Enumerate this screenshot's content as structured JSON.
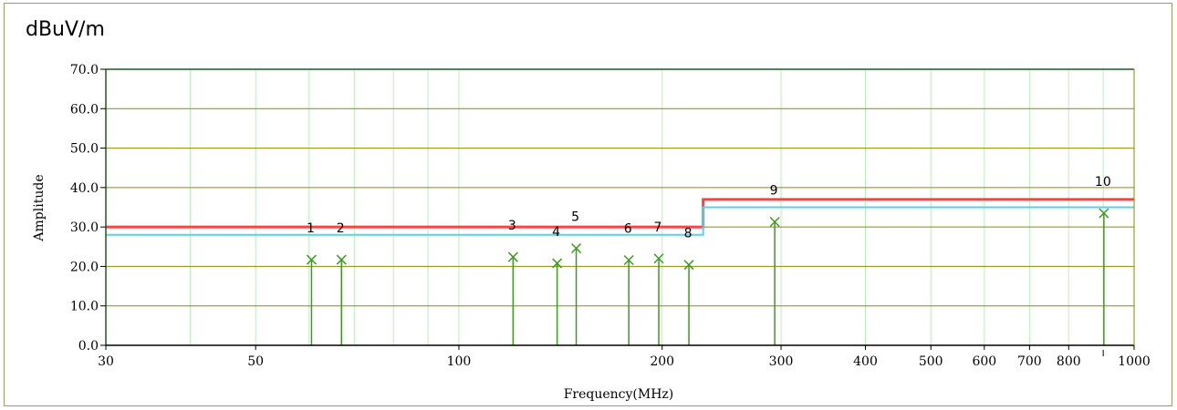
{
  "unit_label": "dBuV/m",
  "chart_data": {
    "type": "scatter",
    "title": "",
    "xlabel": "Frequency(MHz)",
    "ylabel": "Amplitude",
    "x_scale": "log",
    "xlim": [
      30,
      1000
    ],
    "ylim": [
      0,
      70
    ],
    "grid": true,
    "x_ticks": [
      30,
      50,
      100,
      200,
      300,
      400,
      500,
      600,
      700,
      800,
      1000
    ],
    "x_tick_labels": [
      "30",
      "50",
      "100",
      "200",
      "300",
      "400",
      "500",
      "600",
      "700",
      "800",
      "1000"
    ],
    "x_minor_gridlines": [
      40,
      60,
      70,
      80,
      90,
      900
    ],
    "y_ticks": [
      0,
      10,
      20,
      30,
      40,
      50,
      60,
      70
    ],
    "y_tick_labels": [
      "0.0",
      "10.0",
      "20.0",
      "30.0",
      "40.0",
      "50.0",
      "60.0",
      "70.0"
    ],
    "limit_lines": [
      {
        "color": "#ff4040",
        "points": [
          [
            30,
            30.0
          ],
          [
            230,
            30.0
          ],
          [
            230,
            37.0
          ],
          [
            1000,
            37.0
          ]
        ]
      },
      {
        "color": "#5bd0e6",
        "points": [
          [
            30,
            28.0
          ],
          [
            230,
            28.0
          ],
          [
            230,
            35.0
          ],
          [
            1000,
            35.0
          ]
        ]
      }
    ],
    "markers": [
      {
        "label": "1",
        "x": 60.5,
        "y": 21.7
      },
      {
        "label": "2",
        "x": 67.0,
        "y": 21.7
      },
      {
        "label": "3",
        "x": 120.3,
        "y": 22.4
      },
      {
        "label": "4",
        "x": 139.8,
        "y": 20.8
      },
      {
        "label": "5",
        "x": 149.2,
        "y": 24.6
      },
      {
        "label": "6",
        "x": 178.5,
        "y": 21.6
      },
      {
        "label": "7",
        "x": 197.7,
        "y": 22.0
      },
      {
        "label": "8",
        "x": 219.1,
        "y": 20.4
      },
      {
        "label": "9",
        "x": 293.6,
        "y": 31.3
      },
      {
        "label": "10",
        "x": 902.0,
        "y": 33.5
      }
    ]
  },
  "colors": {
    "gridline_h": "#8b8b00",
    "gridline_v": "#b8f0b8",
    "marker": "#3c9a1e",
    "plot_border": "#1f5a1f"
  }
}
